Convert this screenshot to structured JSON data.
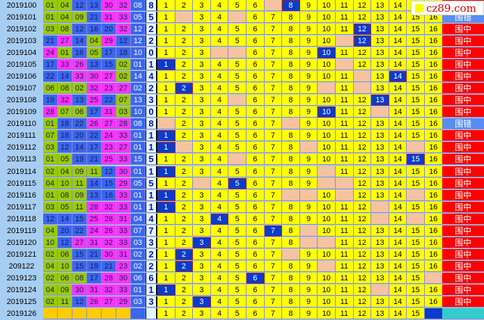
{
  "logo": {
    "text": "cz89.com"
  },
  "colors": {
    "low": "#99cc00",
    "mid": "#3a66f0",
    "high": "#ff33ff",
    "hit": "#0a3ccc",
    "excluded": "#f6c3a0",
    "cell": "#ffff00",
    "win": "#ff0000",
    "miss": "#5a8cf5"
  },
  "grid_numbers": [
    "1",
    "2",
    "3",
    "4",
    "5",
    "6",
    "7",
    "8",
    "9",
    "10",
    "11",
    "12",
    "13",
    "14",
    "15",
    "16"
  ],
  "rows": [
    {
      "issue": "2019100",
      "balls": [
        "01",
        "04",
        "12",
        "13",
        "30",
        "32"
      ],
      "blue": "08",
      "ind": "8",
      "hit": 8,
      "excluded": [
        7
      ],
      "result": ""
    },
    {
      "issue": "2019101",
      "balls": [
        "01",
        "04",
        "09",
        "21",
        "31",
        "33"
      ],
      "blue": "05",
      "ind": "5",
      "hit": null,
      "excluded": [
        2,
        5
      ],
      "result": "围错"
    },
    {
      "issue": "2019102",
      "balls": [
        "03",
        "08",
        "12",
        "16",
        "20",
        "32"
      ],
      "blue": "12",
      "ind": "2",
      "hit": 12,
      "excluded": [],
      "result": "围中"
    },
    {
      "issue": "2019103",
      "balls": [
        "21",
        "27",
        "14",
        "04",
        "29",
        "12"
      ],
      "blue": "12",
      "ind": "2",
      "hit": 12,
      "excluded": [
        11
      ],
      "result": "围中"
    },
    {
      "issue": "2019104",
      "balls": [
        "24",
        "01",
        "16",
        "05",
        "17",
        "18"
      ],
      "blue": "10",
      "ind": "0",
      "hit": 10,
      "excluded": [
        4,
        5
      ],
      "result": "围中"
    },
    {
      "issue": "2019105",
      "balls": [
        "17",
        "33",
        "26",
        "13",
        "15",
        "02"
      ],
      "blue": "01",
      "ind": "1",
      "hit": 1,
      "excluded": [
        11
      ],
      "result": "围中"
    },
    {
      "issue": "2019106",
      "balls": [
        "22",
        "14",
        "33",
        "30",
        "27",
        "02"
      ],
      "blue": "14",
      "ind": "4",
      "hit": 14,
      "excluded": [
        12
      ],
      "result": "围中"
    },
    {
      "issue": "2019107",
      "balls": [
        "06",
        "08",
        "02",
        "32",
        "23",
        "27"
      ],
      "blue": "02",
      "ind": "2",
      "hit": 2,
      "excluded": [
        10,
        12
      ],
      "result": "围中"
    },
    {
      "issue": "2019108",
      "balls": [
        "19",
        "32",
        "13",
        "25",
        "22",
        "07"
      ],
      "blue": "13",
      "ind": "3",
      "hit": 13,
      "excluded": [
        5
      ],
      "result": "围中"
    },
    {
      "issue": "2019109",
      "balls": [
        "28",
        "07",
        "06",
        "17",
        "31",
        "03"
      ],
      "blue": "10",
      "ind": "0",
      "hit": 10,
      "excluded": [
        13
      ],
      "result": "围中"
    },
    {
      "issue": "2019110",
      "balls": [
        "01",
        "18",
        "22",
        "26",
        "27",
        "28"
      ],
      "blue": "08",
      "ind": "8",
      "hit": null,
      "excluded": [
        1,
        8
      ],
      "result": "围错"
    },
    {
      "issue": "2019111",
      "balls": [
        "07",
        "18",
        "20",
        "22",
        "24",
        "33"
      ],
      "blue": "01",
      "ind": "1",
      "hit": 1,
      "excluded": [],
      "result": "围中"
    },
    {
      "issue": "2019112",
      "balls": [
        "03",
        "12",
        "14",
        "17",
        "23",
        "27"
      ],
      "blue": "01",
      "ind": "1",
      "hit": 1,
      "excluded": [
        2,
        9,
        15
      ],
      "result": "围中"
    },
    {
      "issue": "2019113",
      "balls": [
        "01",
        "05",
        "19",
        "21",
        "25",
        "33"
      ],
      "blue": "15",
      "ind": "5",
      "hit": 15,
      "excluded": [
        5
      ],
      "result": "围中"
    },
    {
      "issue": "2019114",
      "balls": [
        "02",
        "04",
        "09",
        "11",
        "12",
        "30"
      ],
      "blue": "01",
      "ind": "1",
      "hit": 1,
      "excluded": [
        10
      ],
      "result": "围中"
    },
    {
      "issue": "2019115",
      "balls": [
        "04",
        "10",
        "11",
        "14",
        "15",
        "29"
      ],
      "blue": "05",
      "ind": "5",
      "hit": 5,
      "excluded": [
        3,
        10,
        11
      ],
      "result": "围中"
    },
    {
      "issue": "2019116",
      "balls": [
        "01",
        "08",
        "09",
        "13",
        "16",
        "33"
      ],
      "blue": "01",
      "ind": "1",
      "hit": 1,
      "excluded": [
        8,
        9,
        11,
        15
      ],
      "result": "围中"
    },
    {
      "issue": "2019117",
      "balls": [
        "03",
        "05",
        "11",
        "28",
        "32",
        "33"
      ],
      "blue": "01",
      "ind": "1",
      "hit": 1,
      "excluded": [
        13
      ],
      "result": "围中"
    },
    {
      "issue": "2019118",
      "balls": [
        "12",
        "14",
        "15",
        "25",
        "28",
        "31"
      ],
      "blue": "04",
      "ind": "4",
      "hit": 4,
      "excluded": [
        13,
        15
      ],
      "result": "围中"
    },
    {
      "issue": "2019119",
      "balls": [
        "04",
        "20",
        "22",
        "24",
        "26",
        "33"
      ],
      "blue": "07",
      "ind": "7",
      "hit": 7,
      "excluded": [
        9
      ],
      "result": "围中"
    },
    {
      "issue": "2019120",
      "balls": [
        "10",
        "12",
        "27",
        "31",
        "32",
        "33"
      ],
      "blue": "03",
      "ind": "3",
      "hit": 3,
      "excluded": [
        9,
        10
      ],
      "result": "围中"
    },
    {
      "issue": "2019121",
      "balls": [
        "02",
        "06",
        "15",
        "21",
        "30",
        "31"
      ],
      "blue": "02",
      "ind": "2",
      "hit": 2,
      "excluded": [
        8
      ],
      "result": "围中"
    },
    {
      "issue": "209122",
      "balls": [
        "04",
        "10",
        "15",
        "19",
        "21",
        "23"
      ],
      "blue": "02",
      "ind": "2",
      "hit": 2,
      "excluded": [
        10
      ],
      "result": "围中"
    },
    {
      "issue": "2019123",
      "balls": [
        "02",
        "06",
        "08",
        "17",
        "28",
        "30"
      ],
      "blue": "06",
      "ind": "6",
      "hit": 6,
      "excluded": [
        16
      ],
      "result": "围中"
    },
    {
      "issue": "2019124",
      "balls": [
        "04",
        "09",
        "30",
        "31",
        "32",
        "33"
      ],
      "blue": "01",
      "ind": "1",
      "hit": 1,
      "excluded": [
        13
      ],
      "result": "围中"
    },
    {
      "issue": "2019125",
      "balls": [
        "02",
        "11",
        "12",
        "26",
        "27",
        "29"
      ],
      "blue": "03",
      "ind": "3",
      "hit": 3,
      "excluded": [],
      "result": "围中"
    },
    {
      "issue": "2019126",
      "balls": [
        "",
        "",
        "",
        "",
        "",
        ""
      ],
      "blue": "",
      "ind": "",
      "hit": null,
      "excluded": [],
      "result": "",
      "pending": true
    }
  ]
}
